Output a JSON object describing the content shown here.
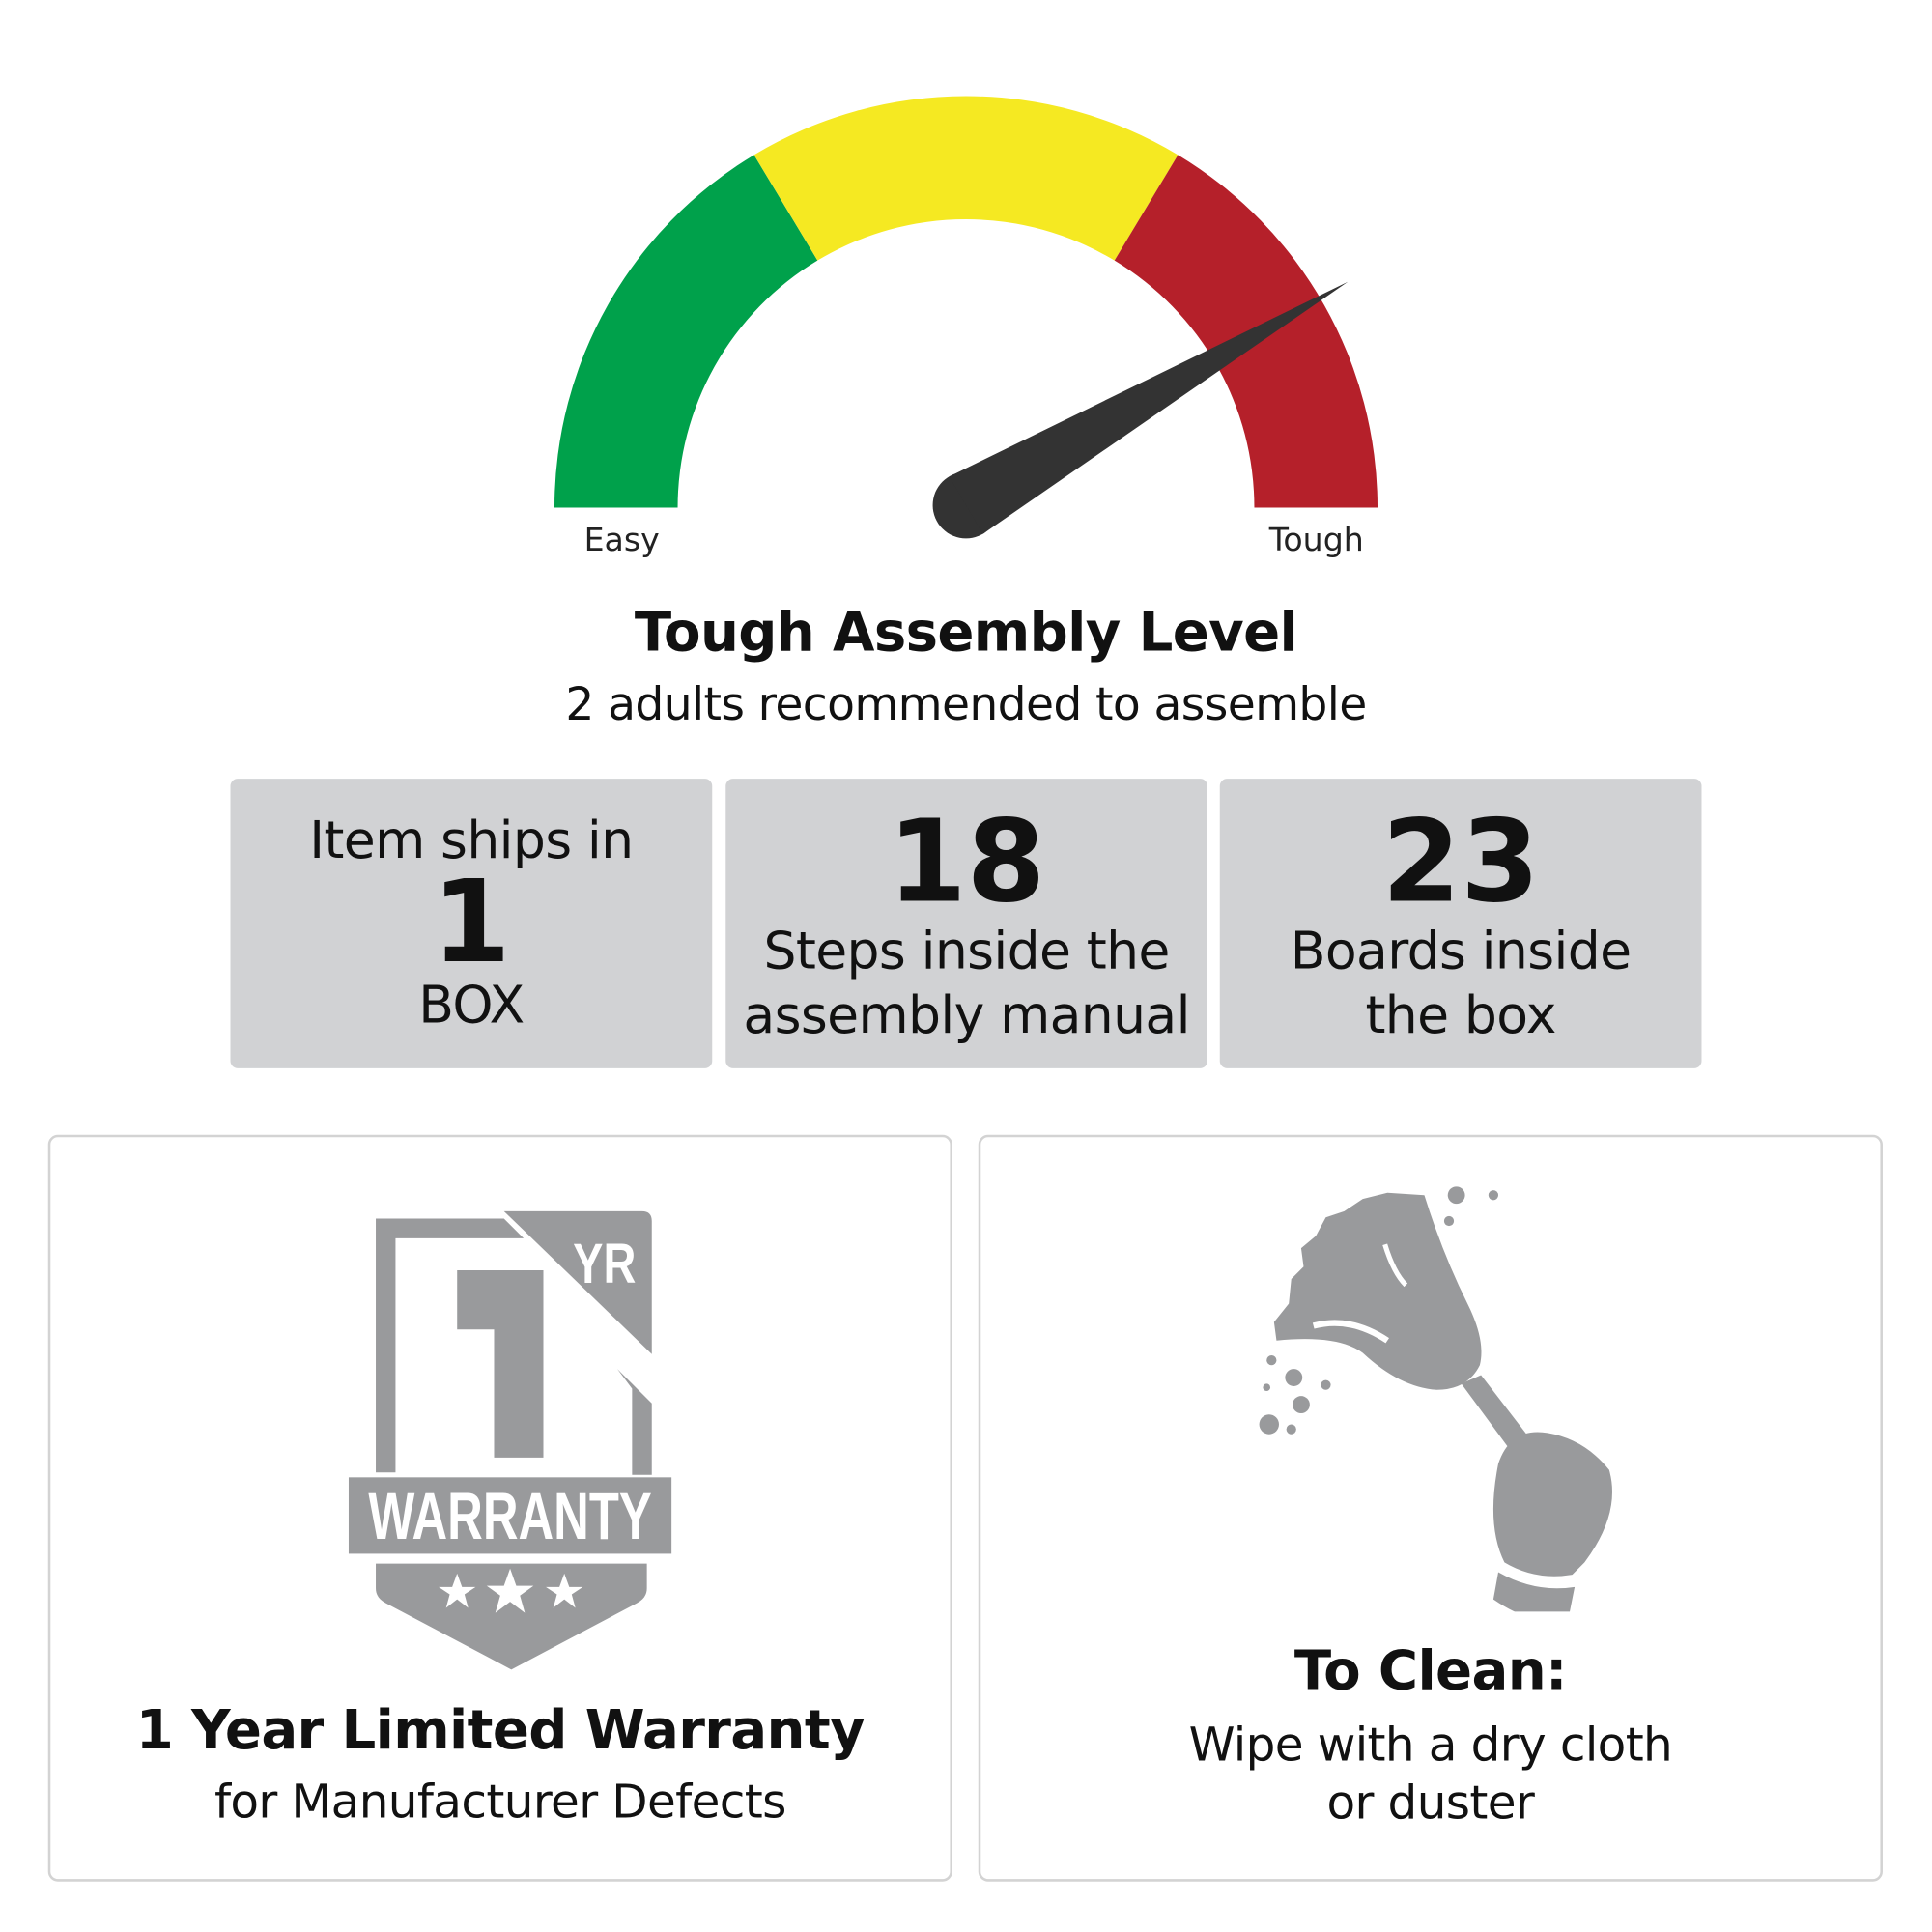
{
  "gauge": {
    "min_label": "Easy",
    "max_label": "Tough",
    "level": "Tough",
    "needle_position_percent": 83,
    "segments": [
      {
        "name": "easy",
        "color": "#00a14b"
      },
      {
        "name": "medium",
        "color": "#f5e922"
      },
      {
        "name": "tough",
        "color": "#b5202a"
      }
    ],
    "needle_color": "#333333"
  },
  "assembly": {
    "title": "Tough Assembly Level",
    "subtitle": "2 adults recommended to assemble"
  },
  "stats": [
    {
      "top": "Item ships in",
      "value": "1",
      "bottom": "BOX"
    },
    {
      "value": "18",
      "line1": "Steps inside the",
      "line2": "assembly manual"
    },
    {
      "value": "23",
      "line1": "Boards inside",
      "line2": "the box"
    }
  ],
  "warranty": {
    "badge_number": "1",
    "badge_unit": "YR",
    "badge_text": "WARRANTY",
    "title": "1 Year Limited Warranty",
    "subtitle": "for Manufacturer Defects",
    "icon": "warranty-badge-icon",
    "icon_color": "#999a9c"
  },
  "cleaning": {
    "title": "To Clean:",
    "line1": "Wipe with a dry cloth",
    "line2": "or duster",
    "icon": "feather-duster-icon"
  }
}
